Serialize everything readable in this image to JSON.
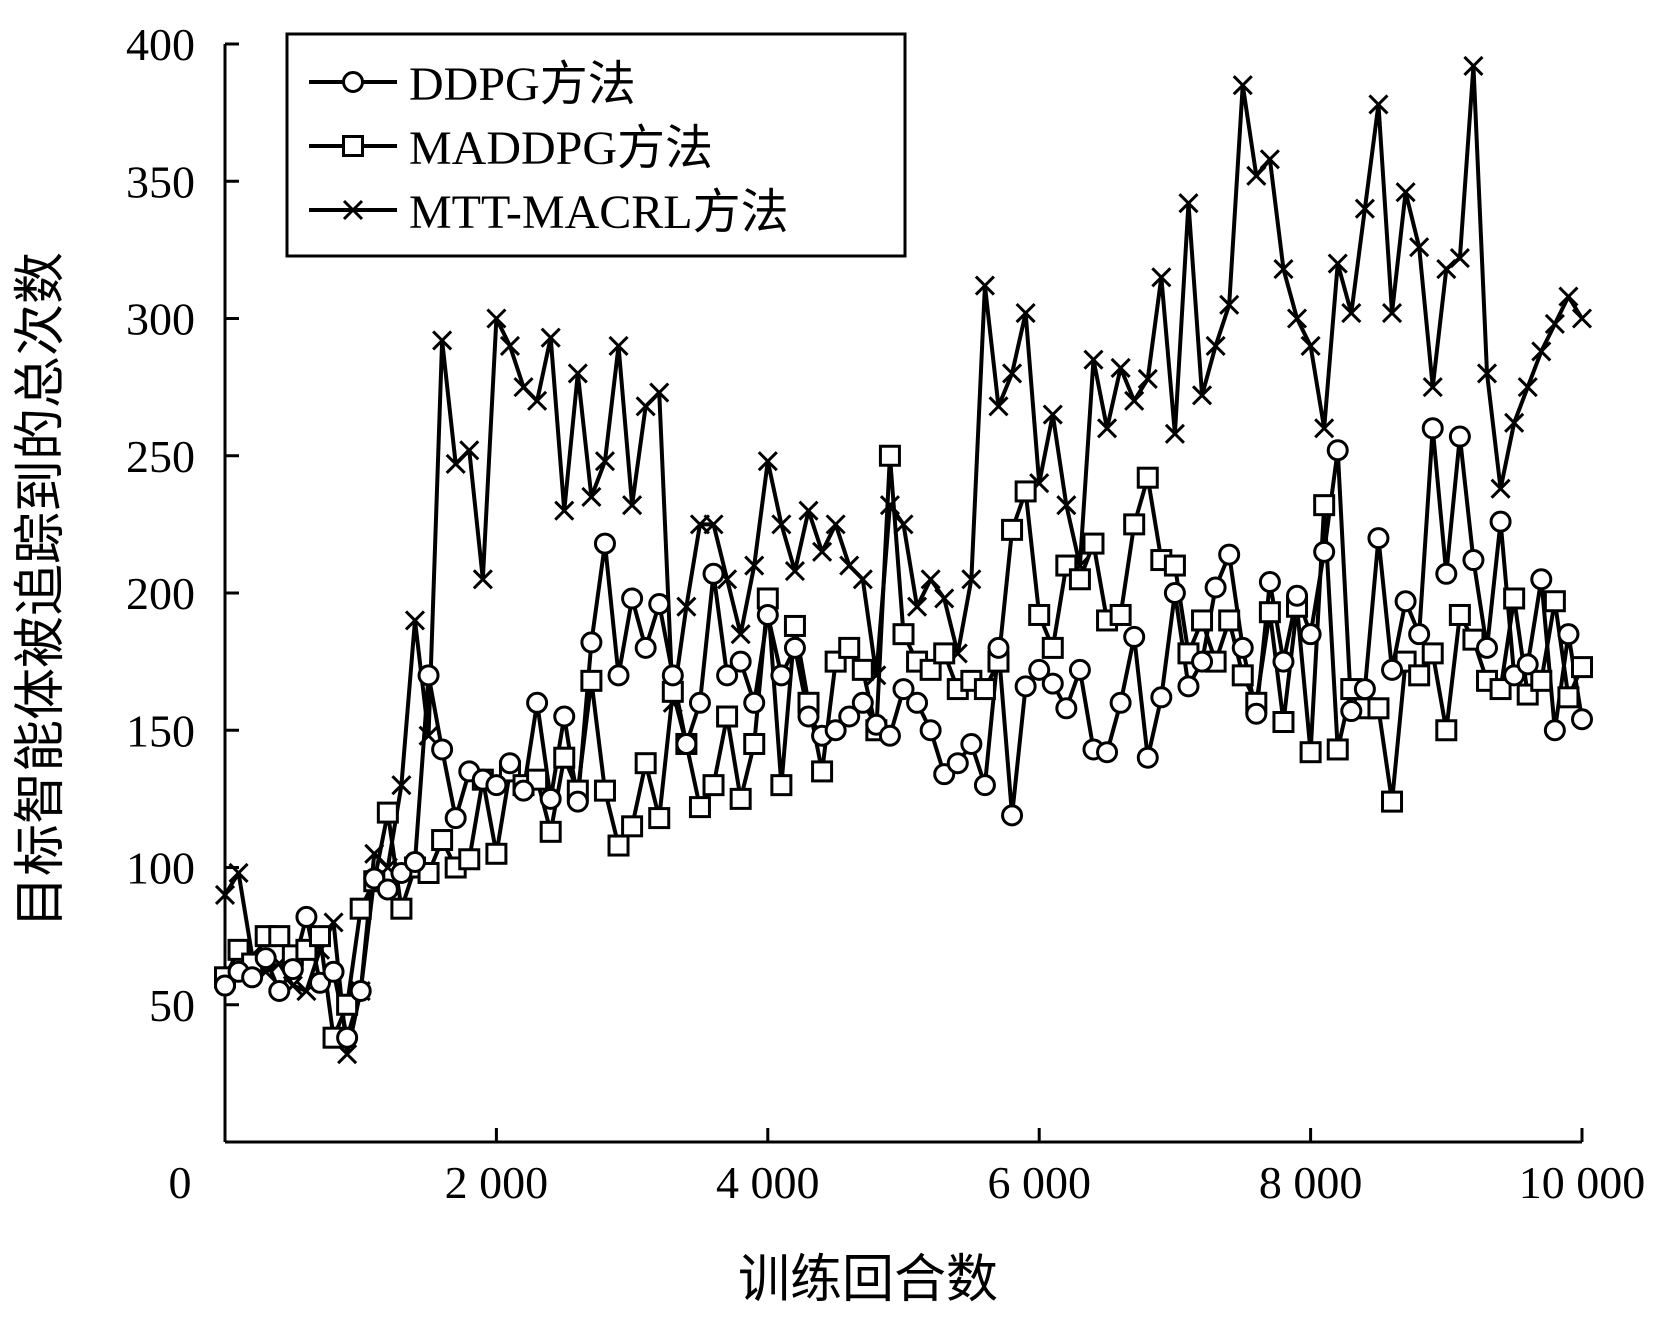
{
  "chart_data": {
    "type": "line",
    "title": "",
    "xlabel": "训练回合数",
    "ylabel": "目标智能体被追踪到的总次数",
    "xlim": [
      0,
      10000
    ],
    "ylim": [
      0,
      400
    ],
    "x_ticks": [
      0,
      2000,
      4000,
      6000,
      8000,
      10000
    ],
    "x_tick_labels": [
      "0",
      "2 000",
      "4 000",
      "6 000",
      "8 000",
      "10 000"
    ],
    "y_ticks": [
      50,
      100,
      150,
      200,
      250,
      300,
      350,
      400
    ],
    "y_tick_labels": [
      "50",
      "100",
      "150",
      "200",
      "250",
      "300",
      "350",
      "400"
    ],
    "grid": false,
    "legend_position": "top-left",
    "colors": {
      "line": "#000000",
      "background": "#ffffff"
    },
    "x": [
      0,
      100,
      200,
      300,
      400,
      500,
      600,
      700,
      800,
      900,
      1000,
      1100,
      1200,
      1300,
      1400,
      1500,
      1600,
      1700,
      1800,
      1900,
      2000,
      2100,
      2200,
      2300,
      2400,
      2500,
      2600,
      2700,
      2800,
      2900,
      3000,
      3100,
      3200,
      3300,
      3400,
      3500,
      3600,
      3700,
      3800,
      3900,
      4000,
      4100,
      4200,
      4300,
      4400,
      4500,
      4600,
      4700,
      4800,
      4900,
      5000,
      5100,
      5200,
      5300,
      5400,
      5500,
      5600,
      5700,
      5800,
      5900,
      6000,
      6100,
      6200,
      6300,
      6400,
      6500,
      6600,
      6700,
      6800,
      6900,
      7000,
      7100,
      7200,
      7300,
      7400,
      7500,
      7600,
      7700,
      7800,
      7900,
      8000,
      8100,
      8200,
      8300,
      8400,
      8500,
      8600,
      8700,
      8800,
      8900,
      9000,
      9100,
      9200,
      9300,
      9400,
      9500,
      9600,
      9700,
      9800,
      9900,
      10000
    ],
    "series": [
      {
        "name": "DDPG方法",
        "marker": "circle",
        "values": [
          57,
          62,
          60,
          67,
          55,
          63,
          82,
          58,
          62,
          38,
          55,
          96,
          92,
          98,
          102,
          170,
          143,
          118,
          135,
          132,
          130,
          138,
          128,
          160,
          125,
          155,
          124,
          182,
          218,
          170,
          198,
          180,
          196,
          170,
          145,
          160,
          207,
          170,
          175,
          160,
          192,
          170,
          180,
          155,
          148,
          150,
          155,
          160,
          152,
          148,
          165,
          160,
          150,
          134,
          138,
          145,
          130,
          180,
          119,
          166,
          172,
          167,
          158,
          172,
          143,
          142,
          160,
          184,
          140,
          162,
          200,
          166,
          175,
          202,
          214,
          180,
          156,
          204,
          175,
          199,
          185,
          215,
          252,
          157,
          165,
          220,
          172,
          197,
          185,
          260,
          207,
          257,
          212,
          180,
          226,
          170,
          174,
          205,
          150,
          185,
          154
        ]
      },
      {
        "name": "MADDPG方法",
        "marker": "square",
        "values": [
          60,
          70,
          65,
          75,
          75,
          68,
          70,
          75,
          38,
          50,
          85,
          95,
          120,
          85,
          100,
          98,
          110,
          100,
          103,
          132,
          105,
          135,
          130,
          132,
          113,
          140,
          128,
          168,
          128,
          108,
          115,
          138,
          118,
          164,
          145,
          122,
          130,
          155,
          125,
          145,
          198,
          130,
          188,
          160,
          135,
          175,
          180,
          172,
          150,
          250,
          185,
          175,
          172,
          178,
          165,
          168,
          165,
          175,
          223,
          237,
          192,
          180,
          210,
          205,
          218,
          190,
          192,
          225,
          242,
          212,
          210,
          178,
          190,
          175,
          190,
          170,
          160,
          193,
          153,
          195,
          142,
          232,
          143,
          165,
          158,
          158,
          124,
          175,
          170,
          178,
          150,
          192,
          183,
          168,
          165,
          198,
          163,
          168,
          197,
          162,
          173
        ]
      },
      {
        "name": "MTT-MACRL方法",
        "marker": "cross",
        "values": [
          90,
          98,
          68,
          62,
          65,
          57,
          55,
          70,
          80,
          32,
          55,
          105,
          100,
          130,
          190,
          148,
          292,
          247,
          252,
          205,
          300,
          290,
          275,
          270,
          293,
          230,
          280,
          235,
          248,
          290,
          232,
          268,
          273,
          160,
          195,
          225,
          225,
          205,
          185,
          210,
          248,
          225,
          208,
          230,
          215,
          225,
          210,
          205,
          170,
          232,
          225,
          195,
          205,
          198,
          178,
          205,
          312,
          268,
          280,
          302,
          240,
          265,
          232,
          210,
          285,
          260,
          282,
          270,
          278,
          315,
          258,
          342,
          272,
          290,
          305,
          385,
          352,
          358,
          318,
          300,
          290,
          260,
          320,
          302,
          340,
          378,
          302,
          346,
          326,
          275,
          318,
          322,
          392,
          280,
          238,
          262,
          275,
          288,
          298,
          308,
          300
        ]
      }
    ]
  }
}
